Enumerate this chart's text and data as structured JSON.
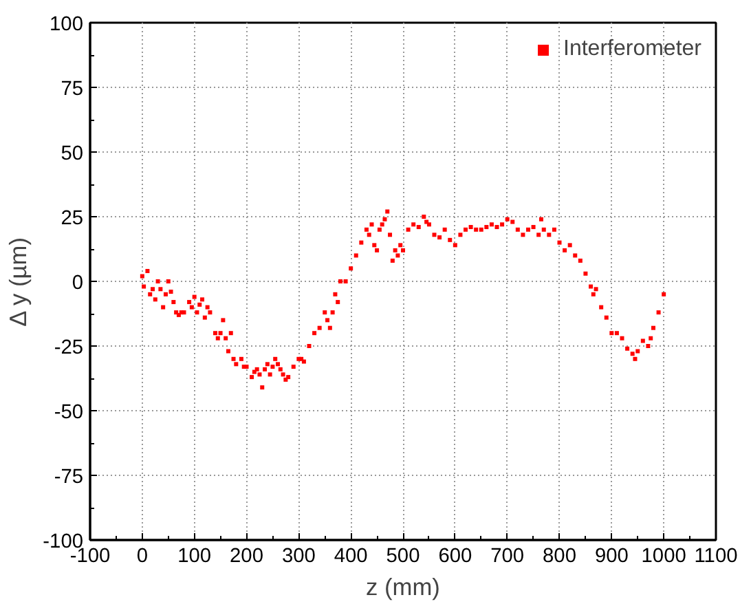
{
  "chart_data": {
    "type": "scatter",
    "xlabel": "z (mm)",
    "ylabel": "Δ y (µm)",
    "xlim": [
      -100,
      1100
    ],
    "xticks": [
      -100,
      0,
      100,
      200,
      300,
      400,
      500,
      600,
      700,
      800,
      900,
      1000,
      1100
    ],
    "ylim": [
      -100,
      100
    ],
    "yticks": [
      -100,
      -75,
      -50,
      -25,
      0,
      25,
      50,
      75,
      100
    ],
    "grid": true,
    "legend": "top right",
    "marker": "square",
    "series": [
      {
        "name": "Interferometer",
        "color": "#ff0000",
        "x": [
          0,
          3,
          10,
          15,
          20,
          25,
          30,
          35,
          40,
          45,
          50,
          55,
          60,
          65,
          70,
          75,
          80,
          90,
          95,
          100,
          105,
          110,
          115,
          120,
          125,
          130,
          140,
          145,
          150,
          155,
          160,
          165,
          170,
          175,
          180,
          190,
          195,
          200,
          210,
          215,
          220,
          225,
          230,
          235,
          240,
          245,
          250,
          255,
          260,
          265,
          270,
          275,
          280,
          290,
          300,
          305,
          310,
          320,
          330,
          340,
          350,
          355,
          360,
          365,
          370,
          375,
          380,
          390,
          400,
          410,
          420,
          430,
          435,
          440,
          445,
          450,
          455,
          460,
          465,
          470,
          475,
          480,
          485,
          490,
          495,
          500,
          510,
          520,
          530,
          540,
          545,
          550,
          560,
          570,
          580,
          590,
          600,
          610,
          620,
          630,
          640,
          650,
          660,
          670,
          680,
          690,
          700,
          710,
          720,
          730,
          740,
          750,
          760,
          765,
          770,
          780,
          790,
          800,
          810,
          820,
          830,
          840,
          850,
          860,
          865,
          870,
          880,
          890,
          900,
          910,
          920,
          930,
          940,
          945,
          950,
          960,
          970,
          975,
          980,
          990,
          1000
        ],
        "values": [
          2,
          -2,
          4,
          -5,
          -3,
          -7,
          0,
          -3,
          -10,
          -5,
          0,
          -4,
          -8,
          -12,
          -13,
          -12,
          -12,
          -8,
          -10,
          -6,
          -12,
          -9,
          -7,
          -14,
          -10,
          -12,
          -20,
          -22,
          -20,
          -15,
          -22,
          -27,
          -20,
          -30,
          -32,
          -30,
          -33,
          -33,
          -37,
          -35,
          -34,
          -36,
          -41,
          -34,
          -32,
          -36,
          -33,
          -30,
          -32,
          -34,
          -36,
          -38,
          -37,
          -33,
          -30,
          -30,
          -31,
          -25,
          -20,
          -18,
          -12,
          -15,
          -18,
          -12,
          -5,
          -8,
          0,
          0,
          5,
          10,
          15,
          20,
          18,
          22,
          14,
          12,
          20,
          22,
          24,
          27,
          18,
          8,
          12,
          10,
          14,
          12,
          20,
          22,
          21,
          25,
          23,
          22,
          18,
          17,
          20,
          16,
          14,
          18,
          20,
          21,
          20,
          20,
          21,
          22,
          21,
          22,
          24,
          23,
          20,
          18,
          20,
          21,
          18,
          24,
          20,
          18,
          20,
          15,
          12,
          14,
          10,
          8,
          3,
          -2,
          -5,
          -3,
          -10,
          -14,
          -20,
          -20,
          -22,
          -26,
          -28,
          -30,
          -27,
          -23,
          -25,
          -22,
          -18,
          -12,
          -5
        ]
      }
    ]
  }
}
